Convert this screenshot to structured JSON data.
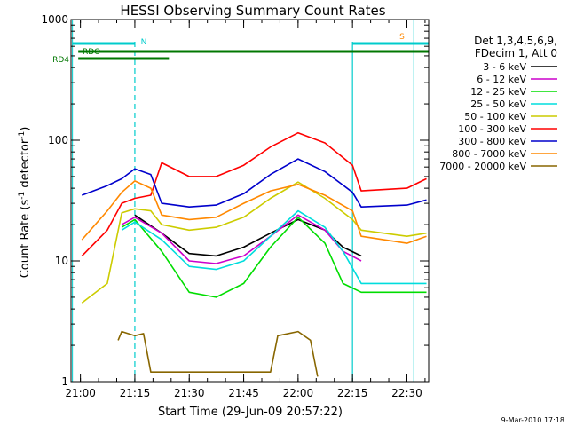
{
  "chart_data": {
    "type": "line",
    "title": "HESSI Observing Summary Count Rates",
    "xlabel": "Start Time (29-Jun-09 20:57:22)",
    "ylabel_parts": [
      "Count Rate (s",
      "-1",
      " detector",
      "-1",
      ")"
    ],
    "y_scale": "log",
    "ylim": [
      1,
      1000
    ],
    "xlim_minutes_after_start": [
      0,
      98.6
    ],
    "x_ticks": [
      {
        "label": "21:00",
        "t": 2.6
      },
      {
        "label": "21:15",
        "t": 17.6
      },
      {
        "label": "21:30",
        "t": 32.6
      },
      {
        "label": "21:45",
        "t": 47.6
      },
      {
        "label": "22:00",
        "t": 62.6
      },
      {
        "label": "22:15",
        "t": 77.6
      },
      {
        "label": "22:30",
        "t": 92.6
      }
    ],
    "y_tick_labels": [
      {
        "label": "1",
        "v": 1
      },
      {
        "label": "10",
        "v": 10
      },
      {
        "label": "100",
        "v": 100
      },
      {
        "label": "1000",
        "v": 1000
      }
    ],
    "legend_header": [
      "Det 1,3,4,5,6,9,",
      "FDecim 1, Att 0"
    ],
    "legend_position": "right",
    "grid": false,
    "flag_labels": [
      {
        "label": "RDO",
        "color": "#007700"
      },
      {
        "label": "RD4",
        "color": "#007700"
      },
      {
        "label": "N",
        "color": "#00cccc"
      },
      {
        "label": "S",
        "color": "#ff8800"
      }
    ],
    "series": [
      {
        "name": "3 - 6 keV",
        "color": "#000000",
        "points": [
          [
            17.6,
            24
          ],
          [
            25,
            17
          ],
          [
            32.6,
            11.5
          ],
          [
            40,
            11
          ],
          [
            47.6,
            13
          ],
          [
            55,
            17
          ],
          [
            62.6,
            22
          ],
          [
            70,
            18
          ],
          [
            75,
            13
          ],
          [
            80,
            11
          ]
        ]
      },
      {
        "name": "6 - 12 keV",
        "color": "#cc00cc",
        "points": [
          [
            14,
            20
          ],
          [
            17.6,
            23
          ],
          [
            25,
            17
          ],
          [
            32.6,
            10
          ],
          [
            40,
            9.5
          ],
          [
            47.6,
            11
          ],
          [
            55,
            16
          ],
          [
            62.6,
            24
          ],
          [
            70,
            18
          ],
          [
            75,
            12
          ],
          [
            80,
            10
          ]
        ]
      },
      {
        "name": "12 - 25 keV",
        "color": "#00dd00",
        "points": [
          [
            14,
            19
          ],
          [
            17.6,
            22
          ],
          [
            25,
            12
          ],
          [
            32.6,
            5.5
          ],
          [
            40,
            5
          ],
          [
            47.6,
            6.5
          ],
          [
            55,
            13
          ],
          [
            62.6,
            23
          ],
          [
            70,
            14
          ],
          [
            75,
            6.5
          ],
          [
            80,
            5.5
          ],
          [
            92.6,
            5.5
          ],
          [
            98,
            5.5
          ]
        ]
      },
      {
        "name": "25 - 50 keV",
        "color": "#00dddd",
        "points": [
          [
            14,
            18
          ],
          [
            17.6,
            21
          ],
          [
            25,
            15
          ],
          [
            32.6,
            9
          ],
          [
            40,
            8.5
          ],
          [
            47.6,
            10
          ],
          [
            55,
            16
          ],
          [
            62.6,
            26
          ],
          [
            70,
            19
          ],
          [
            75,
            12
          ],
          [
            80,
            6.5
          ],
          [
            92.6,
            6.5
          ],
          [
            98,
            6.5
          ]
        ]
      },
      {
        "name": "50 - 100 keV",
        "color": "#cccc00",
        "points": [
          [
            3,
            4.5
          ],
          [
            10,
            6.5
          ],
          [
            14,
            25
          ],
          [
            17.6,
            27
          ],
          [
            22,
            26
          ],
          [
            25,
            20
          ],
          [
            32.6,
            18
          ],
          [
            40,
            19
          ],
          [
            47.6,
            23
          ],
          [
            55,
            33
          ],
          [
            62.6,
            45
          ],
          [
            70,
            33
          ],
          [
            77.6,
            22
          ],
          [
            80,
            18
          ],
          [
            92.6,
            16
          ],
          [
            98,
            17
          ]
        ]
      },
      {
        "name": "100 - 300 keV",
        "color": "#ff0000",
        "points": [
          [
            3,
            11
          ],
          [
            10,
            18
          ],
          [
            14,
            30
          ],
          [
            17.6,
            33
          ],
          [
            22,
            35
          ],
          [
            25,
            65
          ],
          [
            32.6,
            50
          ],
          [
            40,
            50
          ],
          [
            47.6,
            62
          ],
          [
            55,
            88
          ],
          [
            62.6,
            115
          ],
          [
            70,
            95
          ],
          [
            77.6,
            62
          ],
          [
            80,
            38
          ],
          [
            92.6,
            40
          ],
          [
            98,
            48
          ]
        ]
      },
      {
        "name": "300 - 800 keV",
        "color": "#0000cc",
        "points": [
          [
            3,
            35
          ],
          [
            10,
            42
          ],
          [
            14,
            48
          ],
          [
            17.6,
            58
          ],
          [
            22,
            52
          ],
          [
            25,
            30
          ],
          [
            32.6,
            28
          ],
          [
            40,
            29
          ],
          [
            47.6,
            36
          ],
          [
            55,
            52
          ],
          [
            62.6,
            70
          ],
          [
            70,
            55
          ],
          [
            77.6,
            37
          ],
          [
            80,
            28
          ],
          [
            92.6,
            29
          ],
          [
            98,
            32
          ]
        ]
      },
      {
        "name": "800 - 7000 keV",
        "color": "#ff8800",
        "points": [
          [
            3,
            15
          ],
          [
            10,
            26
          ],
          [
            14,
            37
          ],
          [
            17.6,
            46
          ],
          [
            22,
            40
          ],
          [
            25,
            24
          ],
          [
            32.6,
            22
          ],
          [
            40,
            23
          ],
          [
            47.6,
            30
          ],
          [
            55,
            38
          ],
          [
            62.6,
            43
          ],
          [
            70,
            35
          ],
          [
            77.6,
            26
          ],
          [
            80,
            16
          ],
          [
            92.6,
            14
          ],
          [
            98,
            16
          ]
        ]
      },
      {
        "name": "7000 - 20000 keV",
        "color": "#886600",
        "points": [
          [
            13,
            2.2
          ],
          [
            14,
            2.6
          ],
          [
            17.6,
            2.4
          ],
          [
            20,
            2.5
          ],
          [
            22,
            1.2
          ],
          [
            55,
            1.2
          ],
          [
            57,
            2.4
          ],
          [
            62.6,
            2.6
          ],
          [
            66,
            2.2
          ],
          [
            68,
            1.1
          ]
        ]
      }
    ]
  },
  "footer_date": "9-Mar-2010 17:18"
}
